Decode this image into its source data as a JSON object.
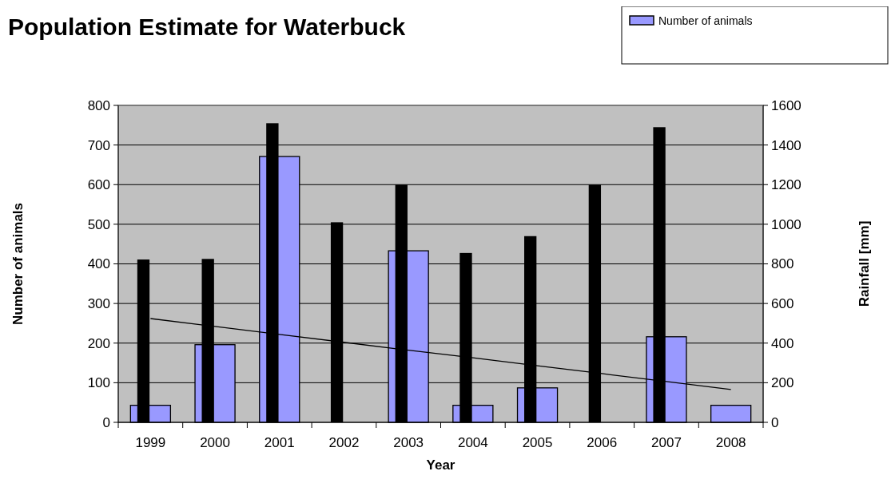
{
  "chart_data": {
    "type": "bar",
    "title": "Population Estimate for Waterbuck",
    "xlabel": "Year",
    "ylabel": "Number of animals",
    "y2label": "Rainfall [mm]",
    "categories": [
      "1999",
      "2000",
      "2001",
      "2002",
      "2003",
      "2004",
      "2005",
      "2006",
      "2007",
      "2008"
    ],
    "series": [
      {
        "name": "Number of animals",
        "color": "#9999ff",
        "values": [
          43,
          196,
          671,
          null,
          433,
          43,
          87,
          null,
          216,
          43
        ]
      },
      {
        "axis": "y2",
        "color": "#000000",
        "values": [
          822,
          825,
          1510,
          1010,
          1200,
          855,
          940,
          1200,
          1490,
          null
        ]
      },
      {
        "type": "line",
        "color": "#000000",
        "values": [
          262,
          242,
          222,
          202,
          182,
          163,
          143,
          123,
          103,
          83
        ]
      }
    ],
    "ylim": [
      0,
      800
    ],
    "yticks": [
      0,
      100,
      200,
      300,
      400,
      500,
      600,
      700,
      800
    ],
    "y2lim": [
      0,
      1600
    ],
    "y2ticks": [
      0,
      200,
      400,
      600,
      800,
      1000,
      1200,
      1400,
      1600
    ],
    "grid": "y",
    "legend": "top right"
  }
}
